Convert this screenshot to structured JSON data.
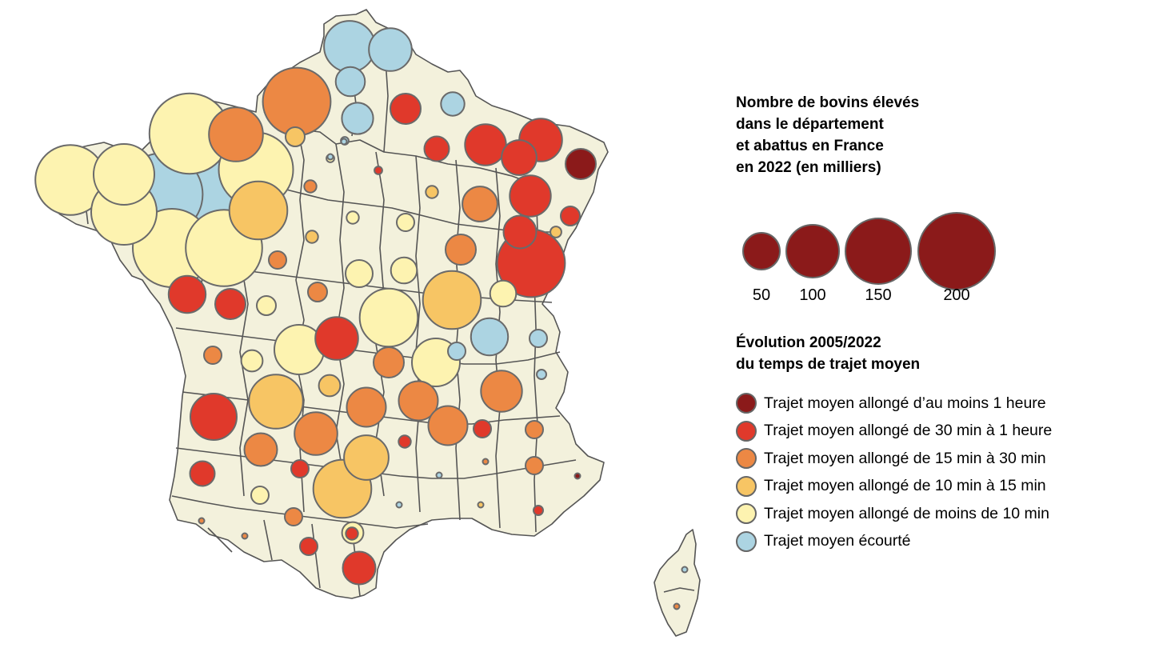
{
  "legend": {
    "size_title_lines": [
      "Nombre de bovins élevés",
      "dans le département",
      "et abattus en France",
      "en 2022 (en milliers)"
    ],
    "size_values": [
      "50",
      "100",
      "150",
      "200"
    ],
    "size_values_numeric": [
      50,
      100,
      150,
      200
    ],
    "size_color": "#8b1a1a",
    "color_title_lines": [
      "Évolution 2005/2022",
      "du temps de trajet moyen"
    ],
    "color_items": [
      {
        "key": "h1",
        "label": "Trajet moyen allongé d’au moins 1 heure",
        "color": "#8b1a1a"
      },
      {
        "key": "m30",
        "label": "Trajet moyen allongé de 30 min à 1 heure",
        "color": "#e0392b"
      },
      {
        "key": "m15",
        "label": "Trajet moyen allongé de 15 min à 30 min",
        "color": "#ec8844"
      },
      {
        "key": "m10",
        "label": "Trajet moyen allongé de 10 min à 15 min",
        "color": "#f7c564"
      },
      {
        "key": "lt10",
        "label": "Trajet moyen allongé de moins de 10 min",
        "color": "#fdf3b0"
      },
      {
        "key": "short",
        "label": "Trajet moyen écourté",
        "color": "#acd4e2"
      }
    ]
  },
  "map": {
    "land_color": "#f3f1dc",
    "regions": [
      "France métropolitaine",
      "Corse"
    ],
    "bubbles_note_thousands": true,
    "bubbles": [
      {
        "value": 85,
        "category": "short"
      },
      {
        "value": 60,
        "category": "short"
      },
      {
        "value": 28,
        "category": "short"
      },
      {
        "value": 150,
        "category": "m15"
      },
      {
        "value": 30,
        "category": "m30"
      },
      {
        "value": 32,
        "category": "short"
      },
      {
        "value": 18,
        "category": "short"
      },
      {
        "value": 12,
        "category": "m10"
      },
      {
        "value": 210,
        "category": "lt10"
      },
      {
        "value": 95,
        "category": "m15"
      },
      {
        "value": 180,
        "category": "lt10"
      },
      {
        "value": 120,
        "category": "lt10"
      },
      {
        "value": 220,
        "category": "short"
      },
      {
        "value": 240,
        "category": "short"
      },
      {
        "value": 160,
        "category": "lt10"
      },
      {
        "value": 110,
        "category": "m10"
      },
      {
        "value": 140,
        "category": "lt10"
      },
      {
        "value": 200,
        "category": "lt10"
      },
      {
        "value": 190,
        "category": "lt10"
      },
      {
        "value": 20,
        "category": "m30"
      },
      {
        "value": 55,
        "category": "m30"
      },
      {
        "value": 40,
        "category": "m30"
      },
      {
        "value": 60,
        "category": "m30"
      },
      {
        "value": 30,
        "category": "h1"
      },
      {
        "value": 55,
        "category": "m30"
      },
      {
        "value": 35,
        "category": "m30"
      },
      {
        "value": 12,
        "category": "m30"
      },
      {
        "value": 4,
        "category": "m10"
      },
      {
        "value": 45,
        "category": "m30"
      },
      {
        "value": 30,
        "category": "m30"
      },
      {
        "value": 5,
        "category": "m10"
      },
      {
        "value": 2,
        "category": "m30"
      },
      {
        "value": 1,
        "category": "short"
      },
      {
        "value": 1,
        "category": "short"
      },
      {
        "value": 5,
        "category": "m15"
      },
      {
        "value": 5,
        "category": "m10"
      },
      {
        "value": 5,
        "category": "lt10"
      },
      {
        "value": 10,
        "category": "lt10"
      },
      {
        "value": 40,
        "category": "m15"
      },
      {
        "value": 30,
        "category": "m15"
      },
      {
        "value": 22,
        "category": "lt10"
      },
      {
        "value": 10,
        "category": "m15"
      },
      {
        "value": 24,
        "category": "lt10"
      },
      {
        "value": 22,
        "category": "lt10"
      },
      {
        "value": 12,
        "category": "m15"
      },
      {
        "value": 150,
        "category": "m30"
      },
      {
        "value": 110,
        "category": "lt10"
      },
      {
        "value": 12,
        "category": "lt10"
      },
      {
        "value": 80,
        "category": "lt10"
      },
      {
        "value": 110,
        "category": "m10"
      },
      {
        "value": 15,
        "category": "lt10"
      },
      {
        "value": 60,
        "category": "m30"
      },
      {
        "value": 75,
        "category": "lt10"
      },
      {
        "value": 45,
        "category": "short"
      },
      {
        "value": 10,
        "category": "short"
      },
      {
        "value": 10,
        "category": "m15"
      },
      {
        "value": 15,
        "category": "m10"
      },
      {
        "value": 30,
        "category": "m15"
      },
      {
        "value": 50,
        "category": "m15"
      },
      {
        "value": 50,
        "category": "m15"
      },
      {
        "value": 10,
        "category": "short"
      },
      {
        "value": 95,
        "category": "m10"
      },
      {
        "value": 65,
        "category": "m10"
      },
      {
        "value": 60,
        "category": "m15"
      },
      {
        "value": 55,
        "category": "m15"
      },
      {
        "value": 35,
        "category": "m15"
      },
      {
        "value": 5,
        "category": "m30"
      },
      {
        "value": 50,
        "category": "m15"
      },
      {
        "value": 10,
        "category": "m30"
      },
      {
        "value": 10,
        "category": "m15"
      },
      {
        "value": 3,
        "category": "short"
      },
      {
        "value": 10,
        "category": "lt10"
      },
      {
        "value": 10,
        "category": "m30"
      },
      {
        "value": 110,
        "category": "m10"
      },
      {
        "value": 10,
        "category": "m15"
      },
      {
        "value": 1,
        "category": "m15"
      },
      {
        "value": 1,
        "category": "m15"
      },
      {
        "value": 10,
        "category": "m30"
      },
      {
        "value": 15,
        "category": "lt10"
      },
      {
        "value": 35,
        "category": "m30"
      },
      {
        "value": 1,
        "category": "short"
      },
      {
        "value": 1,
        "category": "short"
      },
      {
        "value": 1,
        "category": "m10"
      },
      {
        "value": 1,
        "category": "m15"
      },
      {
        "value": 1,
        "category": "h1"
      },
      {
        "value": 70,
        "category": "m30"
      },
      {
        "value": 20,
        "category": "m30"
      },
      {
        "value": 10,
        "category": "m15"
      },
      {
        "value": 3,
        "category": "m30"
      },
      {
        "value": 5,
        "category": "m30"
      },
      {
        "value": 1,
        "category": "short"
      },
      {
        "value": 1,
        "category": "m15"
      },
      {
        "value": 2,
        "category": "lt10"
      },
      {
        "value": 2,
        "category": "short"
      }
    ]
  }
}
